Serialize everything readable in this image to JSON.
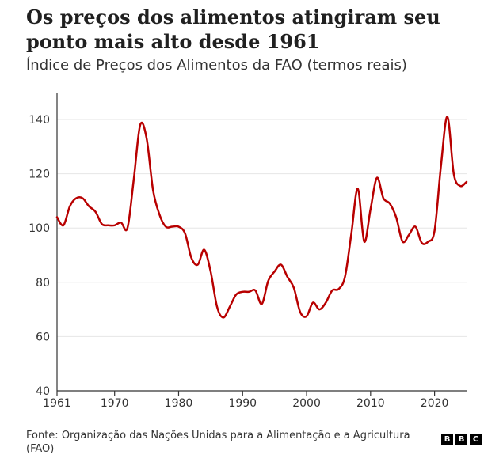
{
  "title": "Os preços dos alimentos atingiram seu ponto mais alto desde 1961",
  "subtitle": "Índice de Preços dos Alimentos da FAO (termos reais)",
  "source": "Fonte: Organização das Nações Unidas para a Alimentação e a Agricultura (FAO)",
  "logo_letters": [
    "B",
    "B",
    "C"
  ],
  "colors": {
    "line": "#b80000",
    "grid": "#e6e6e6",
    "axis": "#333333"
  },
  "chart_data": {
    "type": "line",
    "title": "Os preços dos alimentos atingiram seu ponto mais alto desde 1961",
    "subtitle": "Índice de Preços dos Alimentos da FAO (termos reais)",
    "xlabel": "",
    "ylabel": "",
    "xlim": [
      1961,
      2025
    ],
    "ylim": [
      40,
      150
    ],
    "xticks": [
      1961,
      1970,
      1980,
      1990,
      2000,
      2010,
      2020
    ],
    "yticks": [
      40,
      60,
      80,
      100,
      120,
      140
    ],
    "grid": "horizontal",
    "series": [
      {
        "x": [
          1961,
          1962,
          1963,
          1964,
          1965,
          1966,
          1967,
          1968,
          1969,
          1970,
          1971,
          1972,
          1973,
          1974,
          1975,
          1976,
          1977,
          1978,
          1979,
          1980,
          1981,
          1982,
          1983,
          1984,
          1985,
          1986,
          1987,
          1988,
          1989,
          1990,
          1991,
          1992,
          1993,
          1994,
          1995,
          1996,
          1997,
          1998,
          1999,
          2000,
          2001,
          2002,
          2003,
          2004,
          2005,
          2006,
          2007,
          2008,
          2009,
          2010,
          2011,
          2012,
          2013,
          2014,
          2015,
          2016,
          2017,
          2018,
          2019,
          2020,
          2021,
          2022,
          2023,
          2024,
          2025
        ],
        "y": [
          104,
          101,
          108,
          111,
          111,
          108,
          106,
          101.5,
          101,
          101,
          102,
          100,
          118,
          138,
          133,
          114,
          105,
          100.5,
          100.5,
          100.5,
          98,
          89,
          86.5,
          92,
          84,
          71,
          67,
          71,
          75.5,
          76.5,
          76.5,
          77,
          72,
          80.5,
          84,
          86.5,
          82,
          78,
          69,
          67.5,
          72.5,
          70,
          72.5,
          77,
          77.5,
          82,
          98,
          114.5,
          95,
          107,
          118.5,
          111,
          109,
          104,
          95,
          97.5,
          100.5,
          94.5,
          95,
          99,
          123,
          141,
          120,
          115.5,
          117
        ]
      }
    ]
  }
}
